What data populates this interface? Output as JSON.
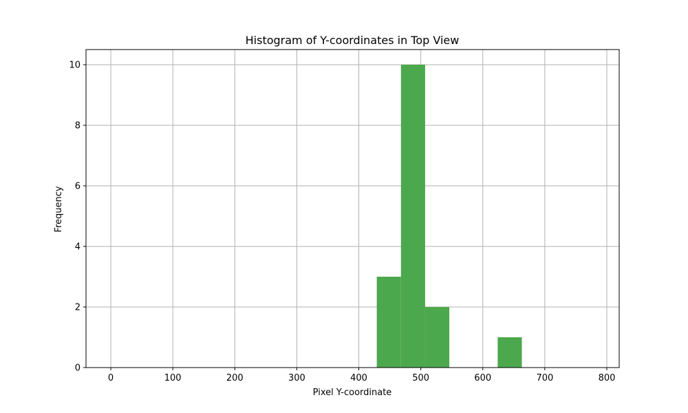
{
  "chart_data": {
    "type": "bar",
    "title": "Histogram of Y-coordinates in Top View",
    "xlabel": "Pixel Y-coordinate",
    "ylabel": "Frequency",
    "xlim": [
      -40,
      820
    ],
    "ylim": [
      0,
      10.5
    ],
    "xticks": [
      0,
      100,
      200,
      300,
      400,
      500,
      600,
      700,
      800
    ],
    "yticks": [
      0,
      2,
      4,
      6,
      8,
      10
    ],
    "grid": true,
    "bar_color": "#4ca84c",
    "bins": [
      {
        "x0": 429,
        "x1": 468,
        "count": 3
      },
      {
        "x0": 468,
        "x1": 507,
        "count": 10
      },
      {
        "x0": 507,
        "x1": 546,
        "count": 2
      },
      {
        "x0": 624,
        "x1": 663,
        "count": 1
      }
    ]
  }
}
